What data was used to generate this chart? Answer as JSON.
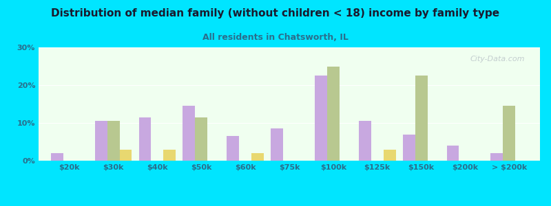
{
  "title": "Distribution of median family (without children < 18) income by family type",
  "subtitle": "All residents in Chatsworth, IL",
  "categories": [
    "$20k",
    "$30k",
    "$40k",
    "$50k",
    "$60k",
    "$75k",
    "$100k",
    "$125k",
    "$150k",
    "$200k",
    "> $200k"
  ],
  "married_couple": [
    2,
    10.5,
    11.5,
    14.5,
    6.5,
    8.5,
    22.5,
    10.5,
    7,
    4,
    2
  ],
  "male_no_wife": [
    0,
    10.5,
    0,
    11.5,
    0,
    0,
    25,
    0,
    22.5,
    0,
    14.5
  ],
  "female_no_husband": [
    0,
    3,
    3,
    0,
    2,
    0,
    0,
    3,
    0,
    0,
    0
  ],
  "bar_colors": {
    "married_couple": "#c8a8e0",
    "male_no_wife": "#b8c890",
    "female_no_husband": "#e8d870"
  },
  "background_outer": "#00e5ff",
  "background_inner_top": "#f0fff0",
  "background_inner_bottom": "#e8f5e0",
  "ylim": [
    0,
    30
  ],
  "yticks": [
    0,
    10,
    20,
    30
  ],
  "ytick_labels": [
    "0%",
    "10%",
    "20%",
    "30%"
  ],
  "watermark": "City-Data.com",
  "title_color": "#1a1a2e",
  "subtitle_color": "#2a6e8c",
  "tick_color": "#2a6e8c",
  "bar_width": 0.28
}
